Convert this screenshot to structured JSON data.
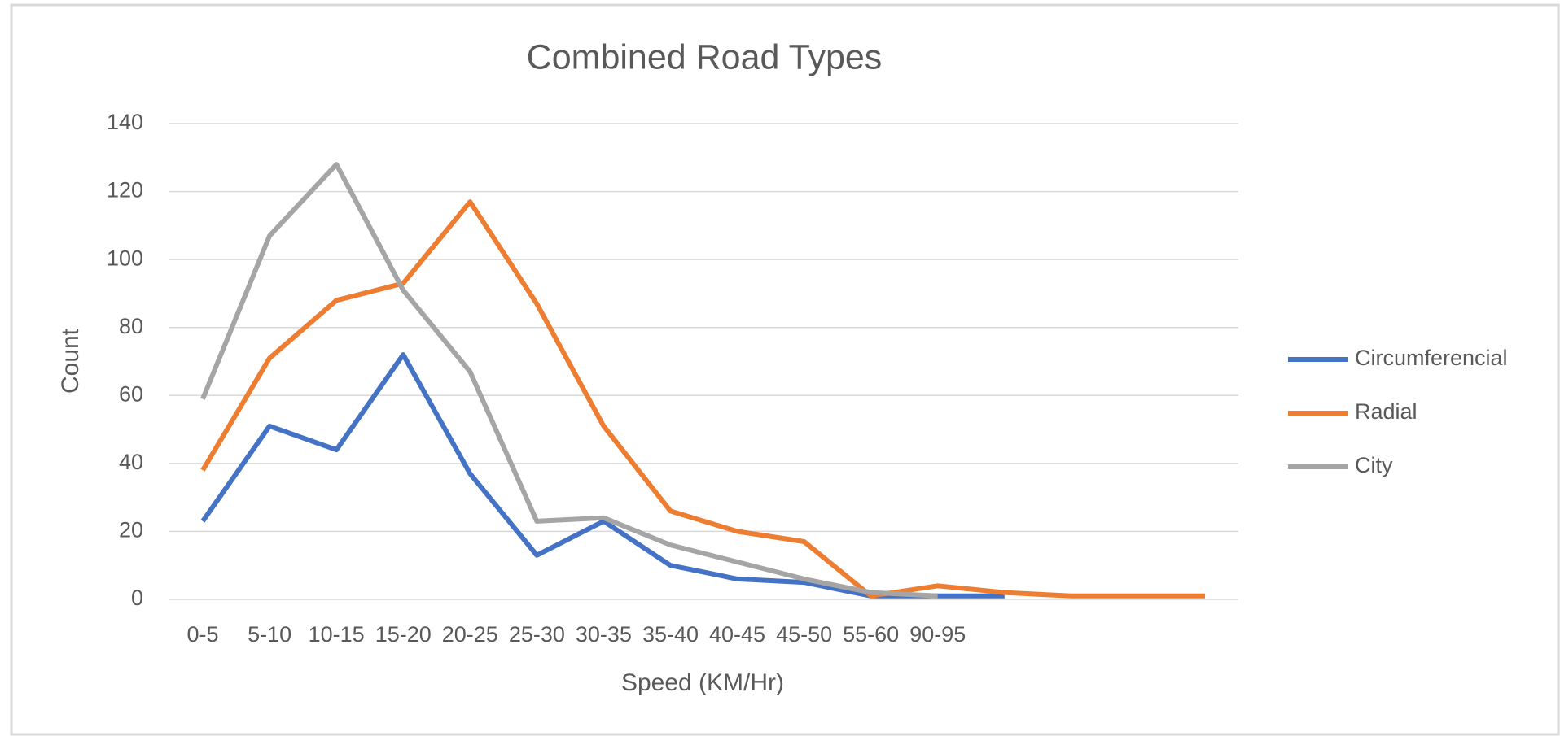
{
  "chart_data": {
    "type": "line",
    "title": "Combined Road Types",
    "x_label": "Speed (KM/Hr)",
    "y_label": "Count",
    "categories": [
      "0-5",
      "5-10",
      "10-15",
      "15-20",
      "20-25",
      "25-30",
      "30-35",
      "35-40",
      "40-45",
      "45-50",
      "55-60",
      "90-95",
      null,
      null,
      null,
      null
    ],
    "series": [
      {
        "name": "Circumferencial",
        "color": "#4472c4",
        "values": [
          23,
          51,
          44,
          72,
          37,
          13,
          23,
          10,
          6,
          5,
          1,
          1,
          1,
          null,
          null,
          null
        ]
      },
      {
        "name": "Radial",
        "color": "#ed7d31",
        "values": [
          38,
          71,
          88,
          93,
          117,
          87,
          51,
          26,
          20,
          17,
          1,
          4,
          2,
          1,
          1,
          1
        ]
      },
      {
        "name": "City",
        "color": "#a5a5a5",
        "values": [
          59,
          107,
          128,
          91,
          67,
          23,
          24,
          16,
          11,
          6,
          2,
          1,
          null,
          null,
          null,
          null
        ]
      }
    ],
    "ylim": [
      0,
      140
    ],
    "yticks": [
      0,
      20,
      40,
      60,
      80,
      100,
      120,
      140
    ],
    "grid": true,
    "legend": "right"
  }
}
